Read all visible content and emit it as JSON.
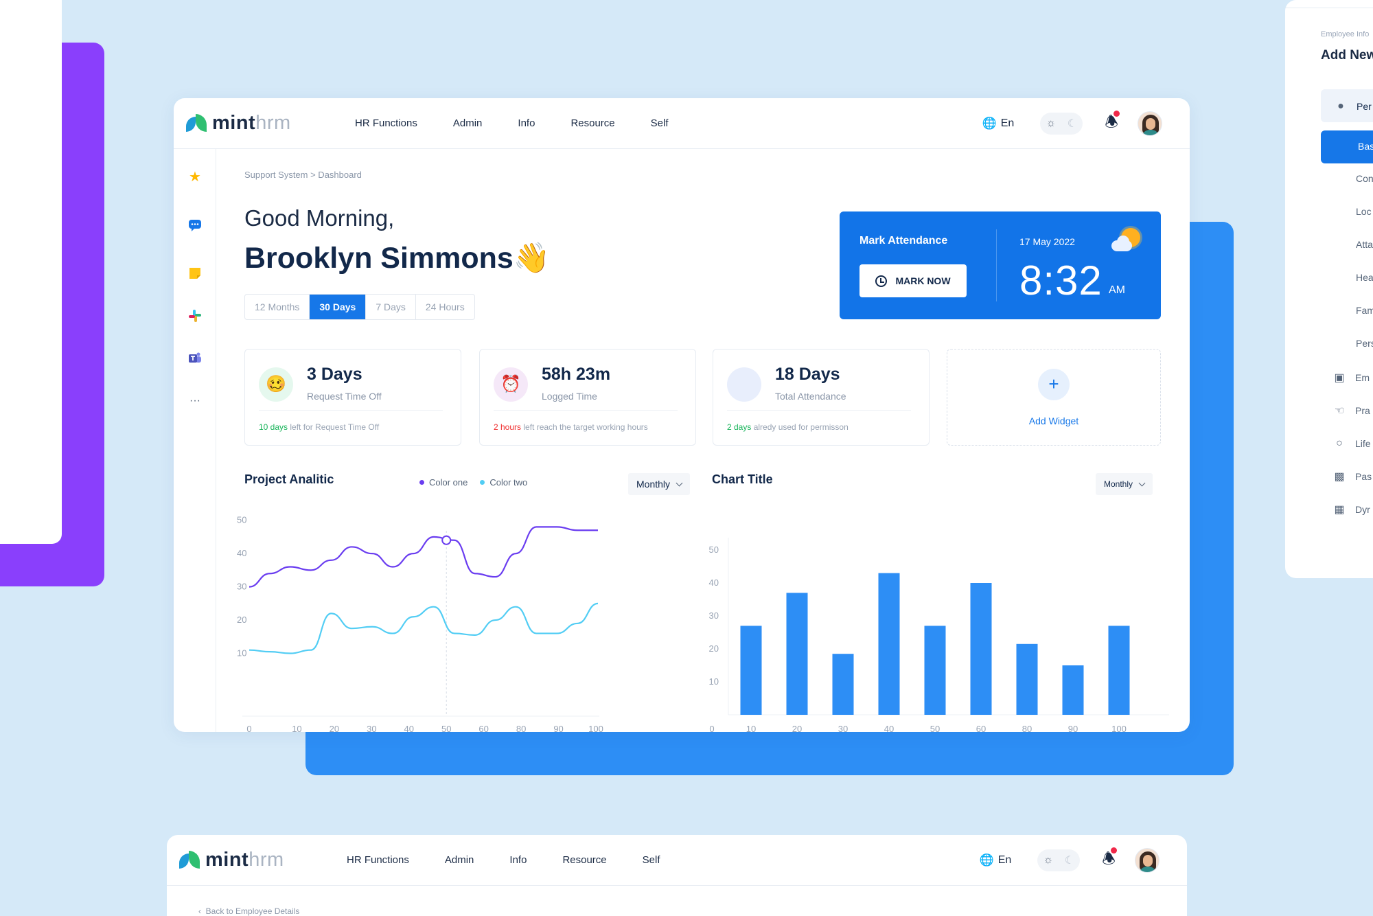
{
  "app": {
    "logo_bold": "mint",
    "logo_light": "hrm",
    "nav": [
      "HR Functions",
      "Admin",
      "Info",
      "Resource",
      "Self"
    ],
    "language": "En"
  },
  "breadcrumb": "Support System > Dashboard",
  "greeting": "Good Morning,",
  "user_name": "Brooklyn Simmons👋",
  "ranges": [
    "12 Months",
    "30 Days",
    "7 Days",
    "24 Hours"
  ],
  "active_range": "30 Days",
  "attendance": {
    "title": "Mark Attendance",
    "button": "MARK NOW",
    "date": "17 May 2022",
    "time": "8:32",
    "ampm": "AM"
  },
  "stats": [
    {
      "value": "3 Days",
      "label": "Request Time Off",
      "note_highlight": "10 days",
      "note_rest": " left for Request Time Off",
      "emoji": "🥴",
      "icon_bg": "#e5f8ee",
      "note_color": "green"
    },
    {
      "value": "58h 23m",
      "label": "Logged Time",
      "note_highlight": "2 hours",
      "note_rest": " left reach the target working hours",
      "emoji": "⏰",
      "icon_bg": "#f5e8f8",
      "note_color": "red"
    },
    {
      "value": "18 Days",
      "label": "Total Attendance",
      "note_highlight": "2 days",
      "note_rest": " alredy used for permisson",
      "emoji": "",
      "icon_bg": "#e8eefc",
      "note_color": "green"
    }
  ],
  "add_widget": "Add Widget",
  "project_chart": {
    "title": "Project Analitic",
    "legend": [
      "Color one",
      "Color two"
    ],
    "dropdown": "Monthly"
  },
  "bar_chart": {
    "title": "Chart Title",
    "dropdown": "Monthly"
  },
  "chart_data": [
    {
      "type": "line",
      "title": "Project Analitic",
      "x_ticks": [
        "0",
        "10",
        "20",
        "30",
        "40",
        "50",
        "60",
        "80",
        "90",
        "100"
      ],
      "y_ticks": [
        10,
        20,
        30,
        40,
        50
      ],
      "ylim": [
        0,
        50
      ],
      "grid": false,
      "legend_position": "top",
      "series": [
        {
          "name": "Color one",
          "color": "#6a3df0",
          "values": [
            30,
            34,
            36,
            35,
            38,
            42,
            40,
            36,
            40,
            45,
            44,
            34,
            33,
            40,
            48,
            48,
            47,
            47
          ]
        },
        {
          "name": "Color two",
          "color": "#52cdf4",
          "values": [
            11,
            10.5,
            10,
            11,
            22,
            17.5,
            18,
            16,
            21,
            24,
            16,
            15.5,
            20,
            24,
            16,
            16,
            19,
            25
          ]
        }
      ],
      "highlight_x": "50"
    },
    {
      "type": "bar",
      "title": "Chart Title",
      "categories": [
        "10",
        "20",
        "30",
        "40",
        "50",
        "60",
        "80",
        "90",
        "100"
      ],
      "values": [
        27,
        37,
        18.5,
        43,
        27,
        40,
        21.5,
        15,
        27
      ],
      "y_ticks": [
        10,
        20,
        30,
        40,
        50
      ],
      "extra_x_tick": "0",
      "ylim": [
        0,
        50
      ],
      "color": "#2d8ef5"
    }
  ],
  "right_panel": {
    "crumb": "Employee Info",
    "title": "Add New",
    "items": [
      "Per",
      "Em",
      "Pra",
      "Life",
      "Pas",
      "Dyr"
    ],
    "subitems": [
      "Bas",
      "Con",
      "Loc",
      "Atta",
      "Hea",
      "Fam",
      "Pers"
    ]
  },
  "bottom_window": {
    "back": "Back to Employee Details"
  }
}
